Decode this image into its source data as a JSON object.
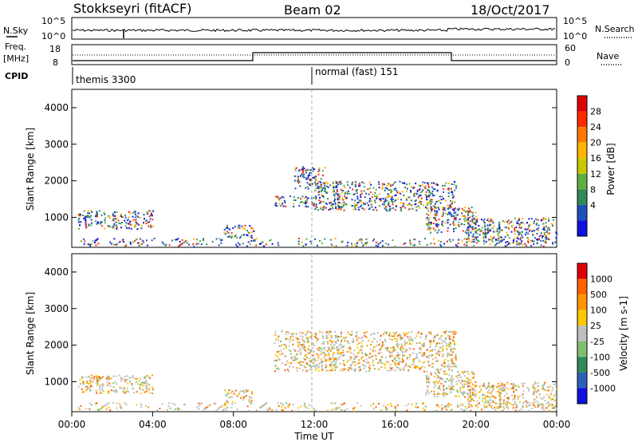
{
  "header": {
    "station": "Stokkseyri (fitACF)",
    "beam": "Beam 02",
    "date": "18/Oct/2017"
  },
  "sky_panel": {
    "left_label": "N.Sky",
    "left_ticks": [
      "10^5",
      "10^0"
    ],
    "right_ticks": [
      "10^5",
      "10^0"
    ],
    "right_label": "N.Search"
  },
  "freq_panel": {
    "left_label_top": "Freq.",
    "left_label_unit": "[MHz]",
    "left_ticks": [
      "18",
      "8"
    ],
    "right_ticks": [
      "60",
      "0"
    ],
    "right_label": "Nave"
  },
  "cpid_panel": {
    "label": "CPID",
    "modes": [
      {
        "name": "themis 3300",
        "start": "00:00"
      },
      {
        "name": "normal (fast) 151",
        "start": "12:00"
      }
    ]
  },
  "power_panel": {
    "ylabel": "Slant Range [km]",
    "yticks": [
      1000,
      2000,
      3000,
      4000
    ],
    "colorbar_label": "Power [dB]",
    "colorbar_ticks": [
      "4",
      "8",
      "12",
      "16",
      "20",
      "24",
      "28"
    ],
    "colorbar_colors": [
      "#1010e0",
      "#1e4fbd",
      "#2e8b57",
      "#5faf3f",
      "#c8c800",
      "#ffb400",
      "#ff7800",
      "#ff2a00",
      "#e00000"
    ]
  },
  "velocity_panel": {
    "ylabel": "Slant Range [km]",
    "yticks": [
      1000,
      2000,
      3000,
      4000
    ],
    "colorbar_label": "Velocity [m s-1]",
    "colorbar_ticks": [
      "1000",
      "500",
      "100",
      "25",
      "-25",
      "-100",
      "-500",
      "-1000"
    ],
    "colorbar_colors": [
      "#1010e0",
      "#2e5fb8",
      "#2e8b57",
      "#80c070",
      "#bebebe",
      "#ffc800",
      "#ff9600",
      "#ff6400",
      "#e00000"
    ]
  },
  "xaxis": {
    "ticks": [
      "00:00",
      "04:00",
      "08:00",
      "12:00",
      "16:00",
      "20:00",
      "00:00"
    ],
    "label": "Time UT"
  },
  "chart_data": {
    "type": "heatmap",
    "x_range_hours": [
      0,
      24
    ],
    "y_range_km": [
      180,
      4500
    ],
    "power_regions": [
      {
        "t0": 0.3,
        "t1": 4.0,
        "r0": 700,
        "r1": 1200,
        "level": "4-12 dB"
      },
      {
        "t0": 7.5,
        "t1": 9.0,
        "r0": 450,
        "r1": 800,
        "level": "4-16 dB"
      },
      {
        "t0": 10.0,
        "t1": 12.0,
        "r0": 1300,
        "r1": 1600,
        "level": "4-12 dB"
      },
      {
        "t0": 11.0,
        "t1": 12.5,
        "r0": 1800,
        "r1": 2400,
        "level": "4-16 dB"
      },
      {
        "t0": 12.0,
        "t1": 19.0,
        "r0": 1200,
        "r1": 2000,
        "level": "4-16 dB"
      },
      {
        "t0": 17.5,
        "t1": 20.0,
        "r0": 600,
        "r1": 1300,
        "level": "8-28 dB"
      },
      {
        "t0": 19.5,
        "t1": 24.0,
        "r0": 300,
        "r1": 1000,
        "level": "4-24 dB"
      }
    ],
    "velocity_regions": [
      {
        "t0": 0.3,
        "t1": 4.0,
        "r0": 700,
        "r1": 1200,
        "level": "-25 to 25 m/s"
      },
      {
        "t0": 7.5,
        "t1": 9.0,
        "r0": 450,
        "r1": 800,
        "level": "-25 to -100 m/s"
      },
      {
        "t0": 10.0,
        "t1": 19.0,
        "r0": 1300,
        "r1": 2400,
        "level": "-25 to 25 m/s"
      },
      {
        "t0": 17.5,
        "t1": 20.0,
        "r0": 600,
        "r1": 1300,
        "level": "-100 to -500 m/s"
      },
      {
        "t0": 19.5,
        "t1": 24.0,
        "r0": 300,
        "r1": 1000,
        "level": "-25 to 100 m/s"
      }
    ]
  }
}
